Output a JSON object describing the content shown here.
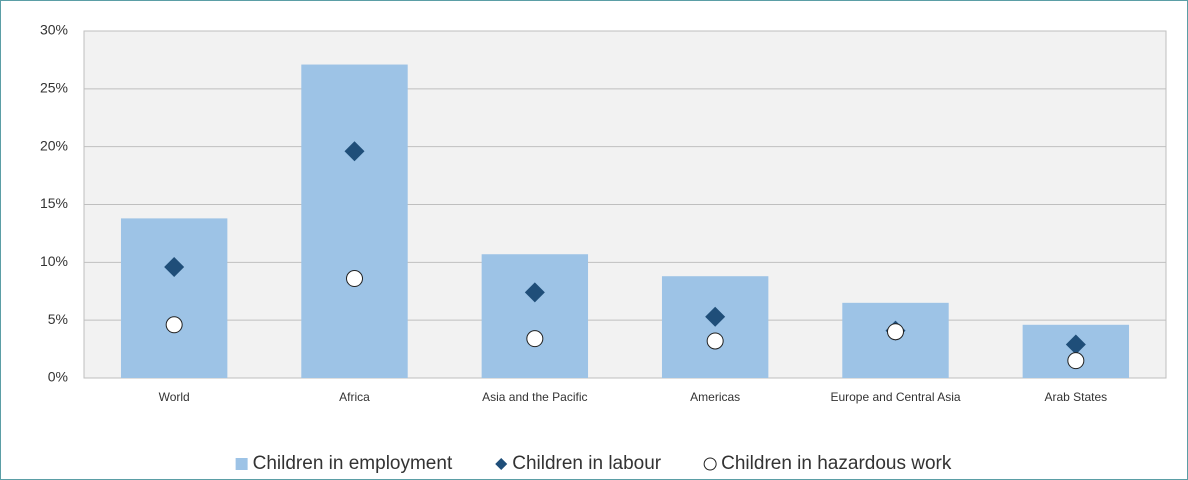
{
  "chart_data": {
    "type": "bar",
    "categories": [
      "World",
      "Africa",
      "Asia and the Pacific",
      "Americas",
      "Europe and Central Asia",
      "Arab States"
    ],
    "series": [
      {
        "name": "Children in employment",
        "type": "bar",
        "color": "#9dc3e6",
        "values": [
          13.8,
          27.1,
          10.7,
          8.8,
          6.5,
          4.6
        ]
      },
      {
        "name": "Children in labour",
        "type": "scatter",
        "marker": "diamond",
        "color": "#1f4e79",
        "values": [
          9.6,
          19.6,
          7.4,
          5.3,
          4.1,
          2.9
        ]
      },
      {
        "name": "Children in hazardous work",
        "type": "scatter",
        "marker": "circle",
        "color": "#ffffff",
        "values": [
          4.6,
          8.6,
          3.4,
          3.2,
          4.0,
          1.5
        ]
      }
    ],
    "ylim": [
      0,
      30
    ],
    "yticks": [
      {
        "value": 0,
        "label": "0%"
      },
      {
        "value": 5,
        "label": "5%"
      },
      {
        "value": 10,
        "label": "10%"
      },
      {
        "value": 15,
        "label": "15%"
      },
      {
        "value": 20,
        "label": "20%"
      },
      {
        "value": 25,
        "label": "25%"
      },
      {
        "value": 30,
        "label": "30%"
      }
    ],
    "grid": true,
    "legend": "bottom"
  }
}
